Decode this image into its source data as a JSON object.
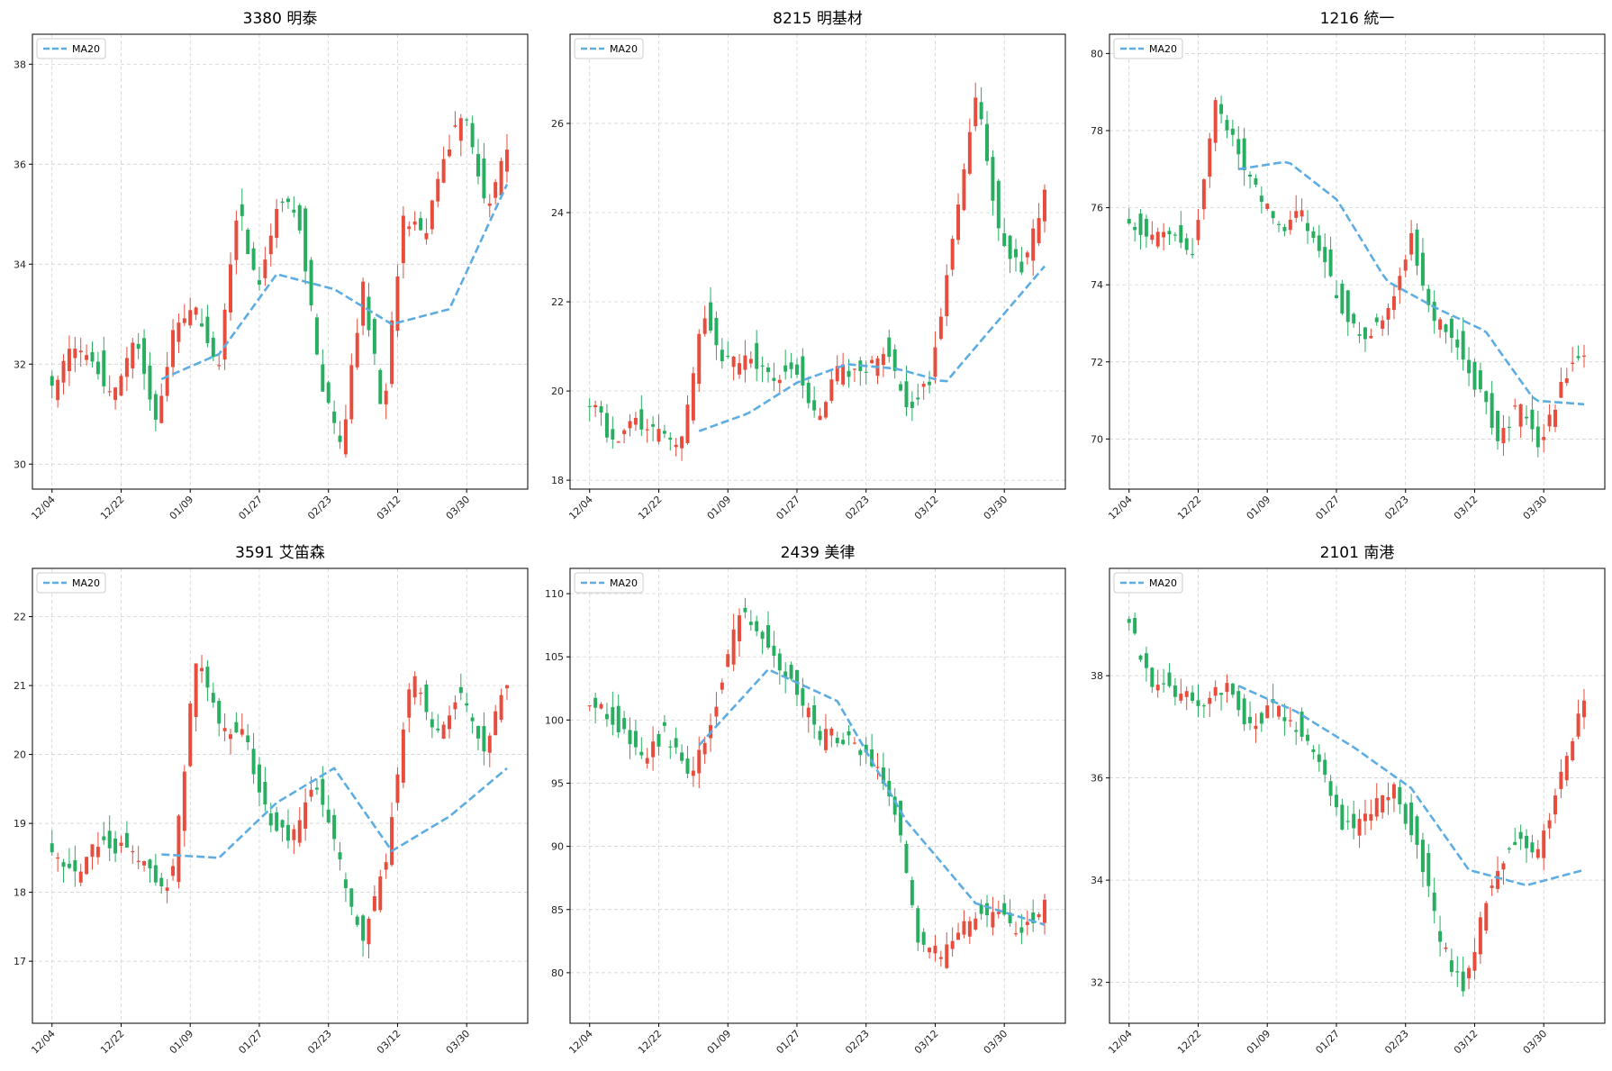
{
  "colors": {
    "up": "#e74c3c",
    "down": "#27ae60",
    "ma": "#5dade2",
    "grid": "#cccccc",
    "frame": "#000000"
  },
  "chart_data": [
    {
      "type": "candlestick",
      "title": "3380 明泰",
      "xticks": [
        "12/04",
        "12/22",
        "01/09",
        "01/27",
        "02/23",
        "03/12",
        "03/30"
      ],
      "ylim": [
        29.5,
        38.6
      ],
      "yticks": [
        30,
        32,
        34,
        36,
        38
      ],
      "legend": {
        "label": "MA20",
        "position": "top-left"
      },
      "grid": true,
      "anchors": [
        31.5,
        32.4,
        32.1,
        31.3,
        32.6,
        31.0,
        32.8,
        33.0,
        31.8,
        35.2,
        33.4,
        35.4,
        34.8,
        31.6,
        30.2,
        33.6,
        31.0,
        35.0,
        34.6,
        36.3,
        37.0,
        35.0,
        36.3
      ],
      "ma_anchors": [
        31.7,
        32.2,
        33.8,
        33.5,
        32.8,
        33.1,
        35.6
      ]
    },
    {
      "type": "candlestick",
      "title": "8215 明基材",
      "xticks": [
        "12/04",
        "12/22",
        "01/09",
        "01/27",
        "02/23",
        "03/12",
        "03/30"
      ],
      "ylim": [
        17.8,
        28.0
      ],
      "yticks": [
        18,
        20,
        22,
        24,
        26
      ],
      "legend": {
        "label": "MA20",
        "position": "top-left"
      },
      "grid": true,
      "anchors": [
        19.8,
        18.9,
        19.3,
        19.1,
        18.7,
        21.8,
        20.6,
        20.9,
        20.2,
        20.7,
        19.2,
        20.6,
        20.3,
        20.9,
        19.6,
        20.3,
        23.6,
        26.8,
        23.4,
        22.7,
        24.4
      ],
      "ma_anchors": [
        19.1,
        19.5,
        20.2,
        20.6,
        20.5,
        20.2,
        21.5,
        22.8
      ]
    },
    {
      "type": "candlestick",
      "title": "1216 統一",
      "xticks": [
        "12/04",
        "12/22",
        "01/09",
        "01/27",
        "02/23",
        "03/12",
        "03/30"
      ],
      "ylim": [
        68.7,
        80.5
      ],
      "yticks": [
        70,
        72,
        74,
        76,
        78,
        80
      ],
      "legend": {
        "label": "MA20",
        "position": "top-left"
      },
      "grid": true,
      "anchors": [
        75.6,
        75.2,
        75.4,
        74.8,
        78.8,
        77.5,
        76.2,
        75.5,
        75.9,
        74.6,
        73.2,
        72.6,
        73.5,
        75.2,
        73.1,
        72.6,
        71.4,
        70.1,
        70.8,
        69.8,
        71.4,
        72.3
      ],
      "ma_anchors": [
        77.0,
        77.2,
        76.2,
        74.1,
        73.4,
        72.8,
        71.0,
        70.9
      ]
    },
    {
      "type": "candlestick",
      "title": "3591 艾笛森",
      "xticks": [
        "12/04",
        "12/22",
        "01/09",
        "01/27",
        "02/23",
        "03/12",
        "03/30"
      ],
      "ylim": [
        16.1,
        22.7
      ],
      "yticks": [
        17,
        18,
        19,
        20,
        21,
        22
      ],
      "legend": {
        "label": "MA20",
        "position": "top-left"
      },
      "grid": true,
      "anchors": [
        18.5,
        18.2,
        18.8,
        18.6,
        18.3,
        18.1,
        21.4,
        20.4,
        20.3,
        19.1,
        18.8,
        19.6,
        18.4,
        17.3,
        18.6,
        21.2,
        20.2,
        21.0,
        20.0,
        21.0
      ],
      "ma_anchors": [
        18.55,
        18.5,
        19.3,
        19.8,
        18.6,
        19.1,
        19.8
      ]
    },
    {
      "type": "candlestick",
      "title": "2439 美律",
      "xticks": [
        "12/04",
        "12/22",
        "01/09",
        "01/27",
        "02/23",
        "03/12",
        "03/30"
      ],
      "ylim": [
        76.0,
        112.0
      ],
      "yticks": [
        80,
        85,
        90,
        95,
        100,
        105,
        110
      ],
      "legend": {
        "label": "MA20",
        "position": "top-left"
      },
      "grid": true,
      "anchors": [
        101.5,
        100.0,
        97.0,
        99.0,
        95.5,
        101.0,
        109.0,
        106.0,
        103.0,
        99.0,
        98.5,
        97.5,
        94.0,
        82.0,
        81.5,
        84.0,
        85.0,
        83.5,
        85.3
      ],
      "ma_anchors": [
        98.0,
        104.0,
        101.5,
        92.0,
        85.5,
        83.8
      ]
    },
    {
      "type": "candlestick",
      "title": "2101 南港",
      "xticks": [
        "12/04",
        "12/22",
        "01/09",
        "01/27",
        "02/23",
        "03/12",
        "03/30"
      ],
      "ylim": [
        31.2,
        40.1
      ],
      "yticks": [
        32,
        34,
        36,
        38
      ],
      "legend": {
        "label": "MA20",
        "position": "top-left"
      },
      "grid": true,
      "anchors": [
        39.0,
        37.8,
        37.6,
        37.5,
        37.8,
        37.0,
        37.4,
        37.0,
        36.3,
        35.0,
        35.3,
        35.8,
        34.8,
        32.8,
        31.8,
        33.8,
        34.8,
        34.4,
        36.0,
        37.6
      ],
      "ma_anchors": [
        37.8,
        37.3,
        36.6,
        35.8,
        34.2,
        33.9,
        34.2
      ]
    }
  ]
}
